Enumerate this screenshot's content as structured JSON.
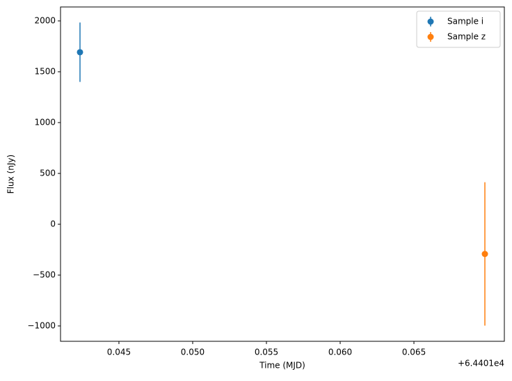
{
  "chart_data": {
    "type": "errorbar",
    "xlabel": "Time (MJD)",
    "ylabel": "Flux (nJy)",
    "x_offset_label": "+6.4401e4",
    "series": [
      {
        "name": "Sample i",
        "color": "#1f77b4",
        "x": [
          64401.04236
        ],
        "values": [
          1692
        ],
        "errors": [
          292
        ]
      },
      {
        "name": "Sample z",
        "color": "#ff7f0e",
        "x": [
          64401.06981
        ],
        "values": [
          -292
        ],
        "errors": [
          705
        ]
      }
    ],
    "xlim": [
      64401.04104,
      64401.07113
    ],
    "ylim": [
      -1151,
      2137
    ],
    "xticks": [
      {
        "value": 64401.045,
        "label": "0.045"
      },
      {
        "value": 64401.05,
        "label": "0.050"
      },
      {
        "value": 64401.055,
        "label": "0.055"
      },
      {
        "value": 64401.06,
        "label": "0.060"
      },
      {
        "value": 64401.065,
        "label": "0.065"
      }
    ],
    "yticks": [
      {
        "value": -1000,
        "label": "−1000"
      },
      {
        "value": -500,
        "label": "−500"
      },
      0,
      500,
      1000,
      1500,
      2000
    ],
    "legend": "upper right"
  }
}
